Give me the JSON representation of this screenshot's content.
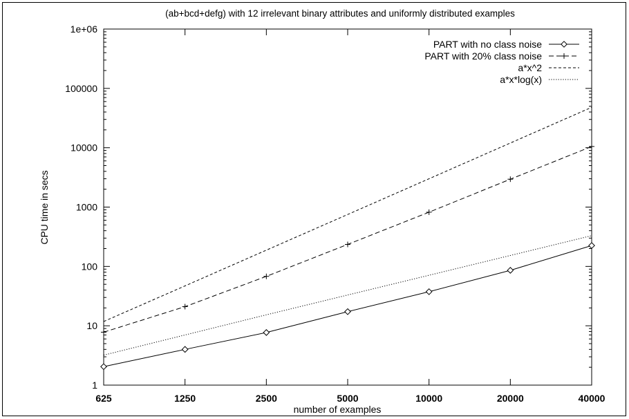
{
  "chart_data": {
    "type": "line",
    "title": "(ab+bcd+defg) with 12 irrelevant binary attributes and uniformly distributed examples",
    "xlabel": "number of examples",
    "ylabel": "CPU time in secs",
    "x_scale": "log2",
    "y_scale": "log10",
    "xlim": [
      625,
      40000
    ],
    "ylim": [
      1,
      1000000
    ],
    "x_ticks": [
      625,
      1250,
      2500,
      5000,
      10000,
      20000,
      40000
    ],
    "x_tick_labels": [
      "625",
      "1250",
      "2500",
      "5000",
      "10000",
      "20000",
      "40000"
    ],
    "y_ticks": [
      1,
      10,
      100,
      1000,
      10000,
      100000,
      1000000
    ],
    "y_tick_labels": [
      "1",
      "10",
      "100",
      "1000",
      "10000",
      "100000",
      "1e+06"
    ],
    "grid": false,
    "legend_position": "top-right",
    "series": [
      {
        "name": "PART with no class noise",
        "line": "solid",
        "marker": "diamond",
        "color": "#000000",
        "x": [
          625,
          1250,
          2500,
          5000,
          10000,
          20000,
          40000
        ],
        "y": [
          2.05,
          4.0,
          7.7,
          17.3,
          37.5,
          86,
          225
        ]
      },
      {
        "name": "PART with 20% class noise",
        "line": "dashed",
        "marker": "plus",
        "color": "#000000",
        "x": [
          625,
          1250,
          2500,
          5000,
          10000,
          20000,
          40000
        ],
        "y": [
          7.8,
          21,
          68,
          235,
          820,
          2950,
          10500
        ]
      },
      {
        "name": "a*x^2",
        "line": "short-dashed",
        "marker": "none",
        "color": "#000000",
        "x": [
          625,
          1250,
          2500,
          5000,
          10000,
          20000,
          40000
        ],
        "y": [
          11.8,
          47,
          188,
          750,
          3000,
          12000,
          48000
        ]
      },
      {
        "name": "a*x*log(x)",
        "line": "dotted",
        "marker": "none",
        "color": "#000000",
        "x": [
          625,
          1250,
          2500,
          5000,
          10000,
          20000,
          40000
        ],
        "y": [
          3.2,
          7.0,
          15.3,
          33,
          71,
          153,
          330
        ]
      }
    ]
  }
}
